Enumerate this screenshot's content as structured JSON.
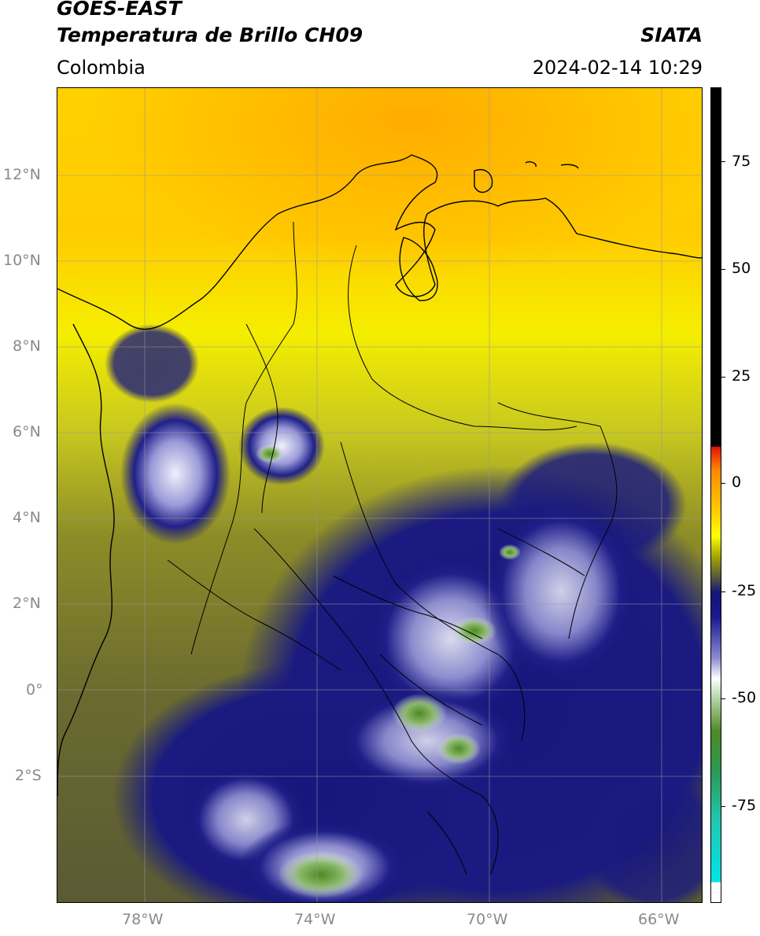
{
  "header": {
    "satellite": "GOES-EAST",
    "product": "Temperatura de Brillo CH09",
    "org": "SIATA",
    "region": "Colombia",
    "datetime": "2024-02-14 10:29"
  },
  "axes": {
    "lat_labels": [
      "12°N",
      "10°N",
      "8°N",
      "6°N",
      "4°N",
      "2°N",
      "0°",
      "2°S"
    ],
    "lon_labels": [
      "78°W",
      "74°W",
      "70°W",
      "66°W"
    ]
  },
  "colorbar": {
    "tick_labels": [
      "75",
      "50",
      "25",
      "0",
      "-25",
      "-50",
      "-75"
    ],
    "colors": {
      "black": "#000000",
      "red": "#e0140a",
      "orange": "#ff8a00",
      "yellow": "#ffff00",
      "olive": "#a6a600",
      "navy": "#141478",
      "white": "#ffffff",
      "green": "#4e8a26",
      "cyan": "#00e5e5"
    }
  },
  "map_colors": {
    "orange_top": "#ffb000",
    "yellow": "#ffee00",
    "olive": "#9a9a18",
    "dark_olive": "#585830",
    "navy": "#141478",
    "cloud_white": "#d8d8f0",
    "cloud_green": "#5a8a30",
    "grid": "#999999"
  }
}
